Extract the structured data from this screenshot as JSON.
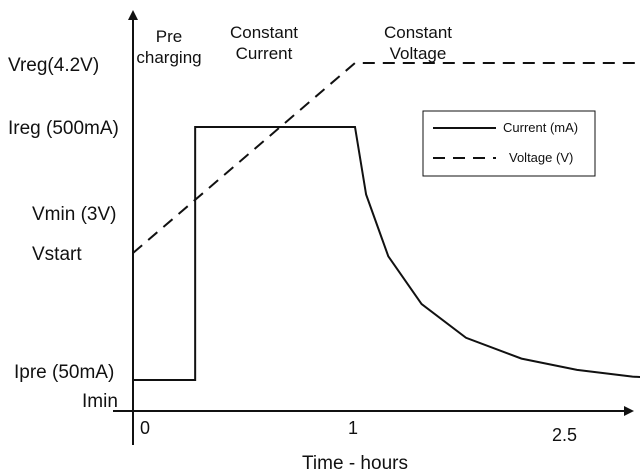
{
  "chart_data": {
    "type": "line",
    "title": "",
    "xlabel": "Time - hours",
    "ylabel": "",
    "x_ticks": [
      {
        "value": 0,
        "label": "0"
      },
      {
        "value": 1,
        "label": "1"
      },
      {
        "value": 2.5,
        "label": "2.5"
      }
    ],
    "y_levels": [
      {
        "key": "vreg",
        "label": "Vreg(4.2V)"
      },
      {
        "key": "ireg",
        "label": "Ireg (500mA)"
      },
      {
        "key": "vmin",
        "label": "Vmin (3V)"
      },
      {
        "key": "vstart",
        "label": "Vstart"
      },
      {
        "key": "ipre",
        "label": "Ipre (50mA)"
      },
      {
        "key": "imin",
        "label": "Imin"
      }
    ],
    "phases": [
      {
        "lines": [
          "Pre",
          "charging"
        ]
      },
      {
        "lines": [
          "Constant",
          "Current"
        ]
      },
      {
        "lines": [
          "Constant",
          "Voltage"
        ]
      }
    ],
    "series": [
      {
        "name": "Current (mA)",
        "style": "solid",
        "color": "#111111",
        "points": [
          {
            "x": 0,
            "y": 50
          },
          {
            "x": 0.28,
            "y": 50
          },
          {
            "x": 0.28,
            "y": 500
          },
          {
            "x": 1.0,
            "y": 500
          },
          {
            "x": 1.05,
            "y": 380
          },
          {
            "x": 1.15,
            "y": 270
          },
          {
            "x": 1.3,
            "y": 185
          },
          {
            "x": 1.5,
            "y": 125
          },
          {
            "x": 1.75,
            "y": 88
          },
          {
            "x": 2.0,
            "y": 68
          },
          {
            "x": 2.25,
            "y": 56
          },
          {
            "x": 2.5,
            "y": 50
          }
        ]
      },
      {
        "name": "Voltage (V)",
        "style": "dashed",
        "color": "#111111",
        "points": [
          {
            "x": 0,
            "y": "Vstart"
          },
          {
            "x": 1.0,
            "y": 4.2
          },
          {
            "x": 2.5,
            "y": 4.2
          }
        ]
      }
    ],
    "legend_position": "top-right",
    "grid": false
  }
}
